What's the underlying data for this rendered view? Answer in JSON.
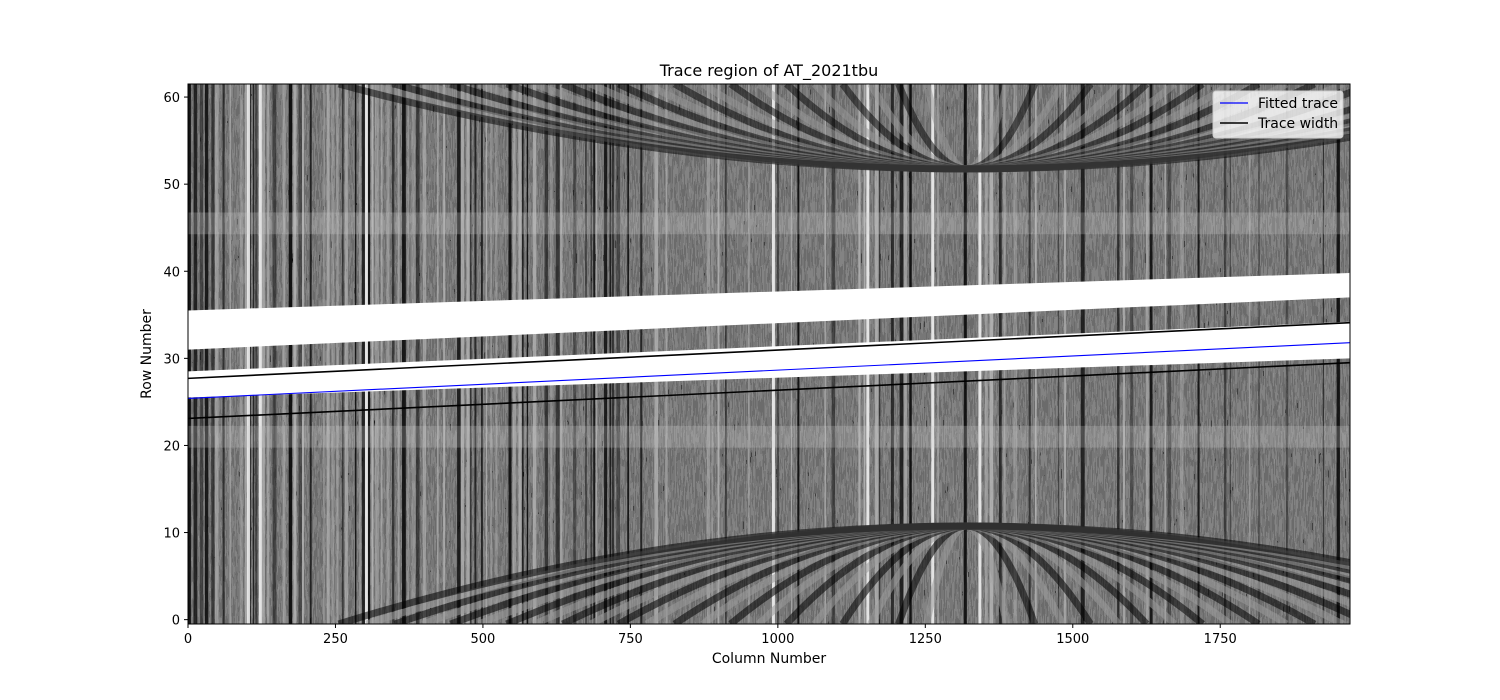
{
  "chart_data": {
    "type": "line",
    "title": "Trace region of AT_2021tbu",
    "xlabel": "Column Number",
    "ylabel": "Row Number",
    "xlim": [
      0,
      1970
    ],
    "ylim": [
      -0.5,
      61.5
    ],
    "xticks": [
      0,
      250,
      500,
      750,
      1000,
      1250,
      1500,
      1750
    ],
    "yticks": [
      0,
      10,
      20,
      30,
      40,
      50,
      60
    ],
    "background": "grayscale 2D spectrum image of the trace region",
    "legend_position": "upper right",
    "grid": false,
    "series": [
      {
        "name": "Fitted trace",
        "color": "#0000ff",
        "x": [
          0,
          1970
        ],
        "y": [
          25.4,
          31.8
        ]
      },
      {
        "name": "Trace width",
        "color": "#000000",
        "x": [
          0,
          1970
        ],
        "y": [
          27.7,
          34.1
        ]
      },
      {
        "name": "",
        "color": "#000000",
        "x": [
          0,
          1970
        ],
        "y": [
          23.1,
          29.5
        ]
      }
    ],
    "image_regions": [
      {
        "description": "white saturated band (upper)",
        "x": [
          0,
          1970
        ],
        "y_low": [
          35.5,
          39.8
        ],
        "y_high": [
          31.0,
          37.0
        ]
      },
      {
        "description": "white saturated band (lower)",
        "x": [
          0,
          1970
        ],
        "y_low": [
          28.5,
          34.2
        ],
        "y_high": [
          25.5,
          30.0
        ]
      }
    ]
  }
}
